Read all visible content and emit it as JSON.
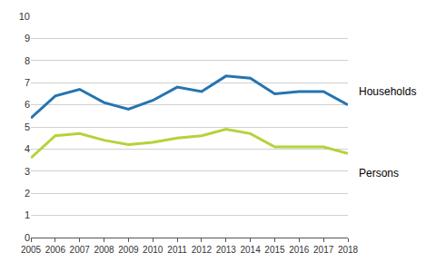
{
  "chart_data": {
    "type": "line",
    "x": [
      2005,
      2006,
      2007,
      2008,
      2009,
      2010,
      2011,
      2012,
      2013,
      2014,
      2015,
      2016,
      2017,
      2018
    ],
    "series": [
      {
        "name": "Households",
        "color": "#2574b0",
        "values": [
          5.4,
          6.4,
          6.7,
          6.1,
          5.8,
          6.2,
          6.8,
          6.6,
          7.3,
          7.2,
          6.5,
          6.6,
          6.6,
          6.0
        ]
      },
      {
        "name": "Persons",
        "color": "#b4d33a",
        "values": [
          3.6,
          4.6,
          4.7,
          4.4,
          4.2,
          4.3,
          4.5,
          4.6,
          4.9,
          4.7,
          4.1,
          4.1,
          4.1,
          3.8
        ]
      }
    ],
    "xlim": [
      2005,
      2018
    ],
    "xticks": [
      2005,
      2006,
      2007,
      2008,
      2009,
      2010,
      2011,
      2012,
      2013,
      2014,
      2015,
      2016,
      2017,
      2018
    ],
    "ylim": [
      0,
      10
    ],
    "yticks": [
      0,
      1,
      2,
      3,
      4,
      5,
      6,
      7,
      8,
      9,
      10
    ],
    "grid": true
  }
}
